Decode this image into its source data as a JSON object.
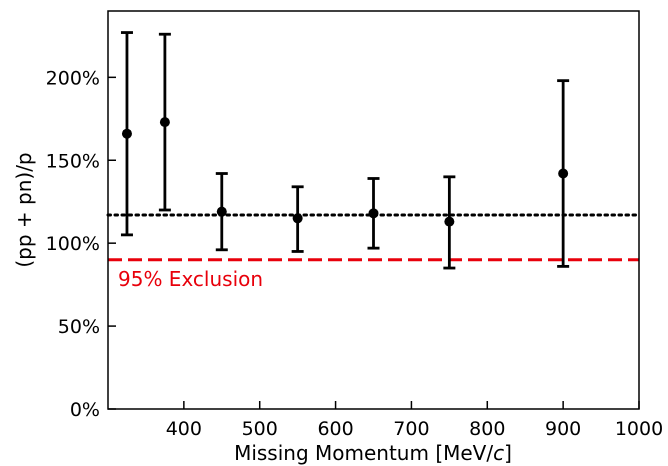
{
  "chart_data": {
    "type": "scatter",
    "xlabel": "Missing Momentum [MeV/",
    "xlabel_italic": "c",
    "xlabel_close": "]",
    "ylabel": "(pp + pn)/p",
    "xlim": [
      300,
      1000
    ],
    "ylim": [
      0,
      240
    ],
    "x_ticks": [
      400,
      500,
      600,
      700,
      800,
      900,
      1000
    ],
    "y_ticks": [
      0,
      50,
      100,
      150,
      200
    ],
    "y_tick_labels": [
      "0%",
      "50%",
      "100%",
      "150%",
      "200%"
    ],
    "points": [
      {
        "x": 325,
        "y": 166,
        "err_low": 105,
        "err_high": 227
      },
      {
        "x": 375,
        "y": 173,
        "err_low": 120,
        "err_high": 226
      },
      {
        "x": 450,
        "y": 119,
        "err_low": 96,
        "err_high": 142
      },
      {
        "x": 550,
        "y": 115,
        "err_low": 95,
        "err_high": 134
      },
      {
        "x": 650,
        "y": 118,
        "err_low": 97,
        "err_high": 139
      },
      {
        "x": 750,
        "y": 113,
        "err_low": 85,
        "err_high": 140
      },
      {
        "x": 900,
        "y": 142,
        "err_low": 86,
        "err_high": 198
      }
    ],
    "reference_lines": [
      {
        "y": 117,
        "style": "dotted",
        "color": "#000000"
      },
      {
        "y": 90,
        "style": "dashed",
        "color": "#e8000b",
        "label": "95% Exclusion"
      }
    ],
    "marker_color": "#000000",
    "grid": false,
    "legend": "none"
  }
}
